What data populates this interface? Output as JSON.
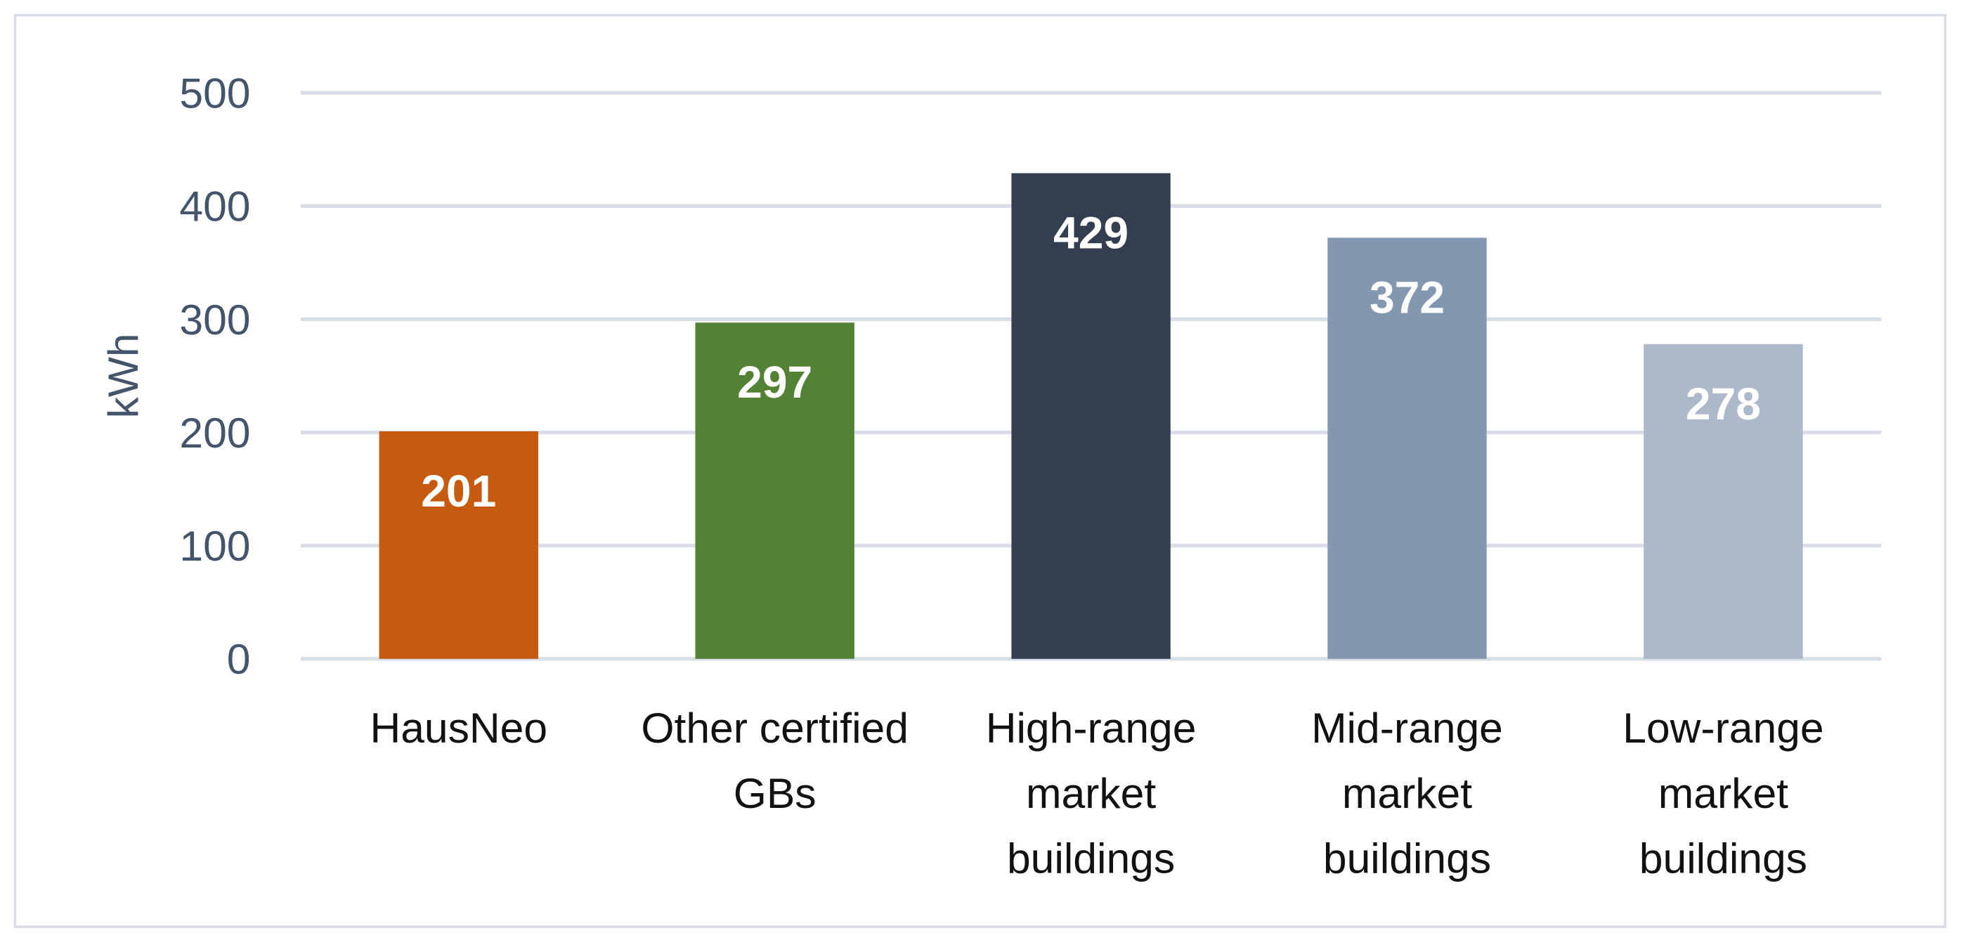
{
  "chart_data": {
    "type": "bar",
    "title": "",
    "xlabel": "",
    "ylabel": "kWh",
    "ylim": [
      0,
      500
    ],
    "yticks": [
      0,
      100,
      200,
      300,
      400,
      500
    ],
    "grid": true,
    "legend": "none",
    "categories": [
      [
        "HausNeo"
      ],
      [
        "Other certified",
        "GBs"
      ],
      [
        "High-range",
        "market",
        "buildings"
      ],
      [
        "Mid-range",
        "market",
        "buildings"
      ],
      [
        "Low-range",
        "market",
        "buildings"
      ]
    ],
    "values": [
      201,
      297,
      429,
      372,
      278
    ],
    "colors": [
      "#C55A11",
      "#548235",
      "#333F50",
      "#8497B0",
      "#ADB9CA"
    ],
    "data_labels": [
      "201",
      "297",
      "429",
      "372",
      "278"
    ]
  }
}
